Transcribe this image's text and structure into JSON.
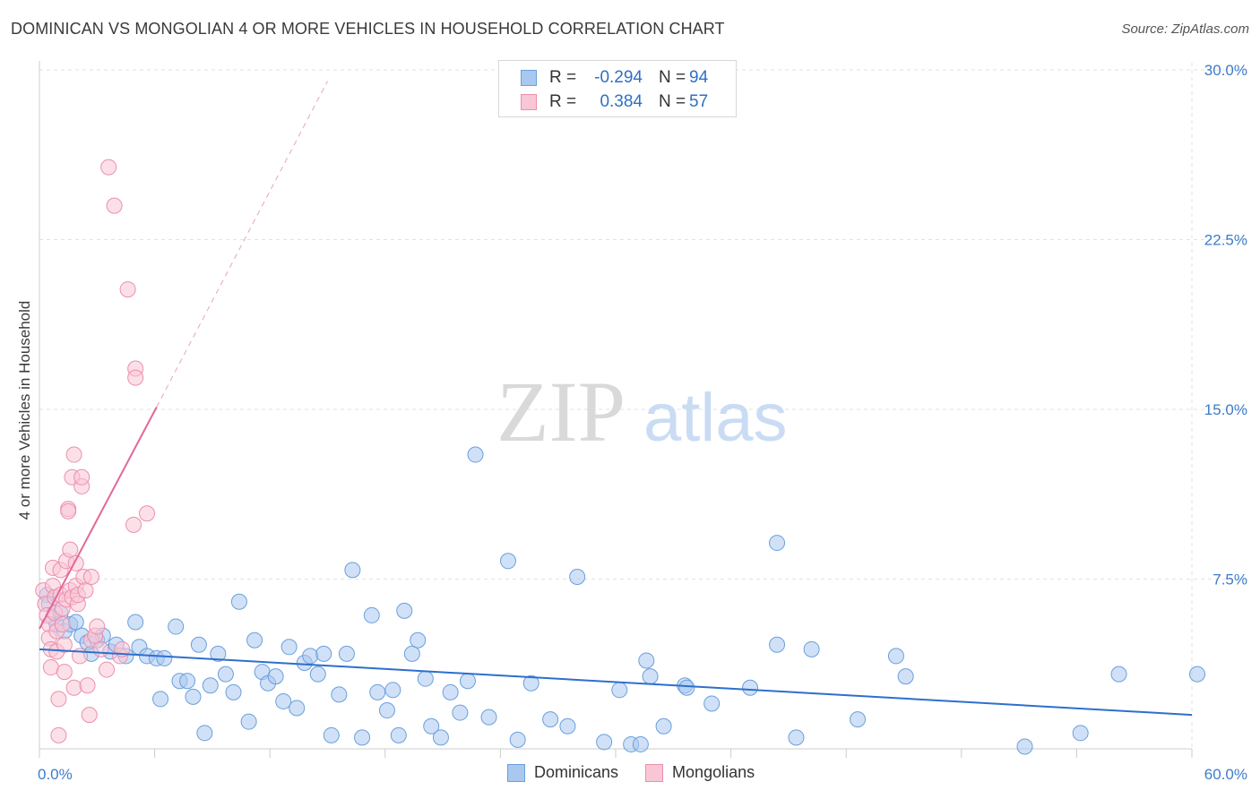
{
  "header": {
    "title": "DOMINICAN VS MONGOLIAN 4 OR MORE VEHICLES IN HOUSEHOLD CORRELATION CHART",
    "source": "Source: ZipAtlas.com"
  },
  "watermark": {
    "zip": "ZIP",
    "atlas": "atlas"
  },
  "legend_top": {
    "rows": [
      {
        "r_label": "R =",
        "r_value": "-0.294",
        "n_label": "N =",
        "n_value": "94",
        "color": "#a9c8f0",
        "border": "#6a9fdc"
      },
      {
        "r_label": "R =",
        "r_value": "0.384",
        "n_label": "N =",
        "n_value": "57",
        "color": "#f9c6d6",
        "border": "#ea8fae"
      }
    ]
  },
  "legend_bottom": {
    "items": [
      {
        "label": "Dominicans",
        "color": "#a9c8f0",
        "border": "#6a9fdc"
      },
      {
        "label": "Mongolians",
        "color": "#f9c6d6",
        "border": "#ea8fae"
      }
    ]
  },
  "chart_data": {
    "type": "scatter",
    "title": "DOMINICAN VS MONGOLIAN 4 OR MORE VEHICLES IN HOUSEHOLD CORRELATION CHART",
    "xlabel": "",
    "ylabel": "4 or more Vehicles in Household",
    "xlim": [
      0,
      60
    ],
    "ylim": [
      0,
      30
    ],
    "x_tick_labels": [
      "0.0%",
      "60.0%"
    ],
    "y_ticks": [
      7.5,
      15.0,
      22.5,
      30.0
    ],
    "y_tick_labels": [
      "7.5%",
      "15.0%",
      "22.5%",
      "30.0%"
    ],
    "grid": true,
    "legend_placement": "top-center",
    "series": [
      {
        "name": "Dominicans",
        "color": "#6a9fdc",
        "fill": "#a9c8f0",
        "trend": {
          "x": [
            0,
            60
          ],
          "y": [
            4.4,
            1.5
          ]
        },
        "points": [
          [
            0.4,
            6.8
          ],
          [
            0.5,
            6.4
          ],
          [
            0.7,
            5.8
          ],
          [
            0.9,
            5.5
          ],
          [
            1.1,
            6.0
          ],
          [
            1.3,
            5.2
          ],
          [
            1.6,
            5.5
          ],
          [
            1.9,
            5.6
          ],
          [
            2.2,
            5.0
          ],
          [
            2.5,
            4.7
          ],
          [
            2.7,
            4.2
          ],
          [
            3.0,
            4.8
          ],
          [
            3.3,
            5.0
          ],
          [
            3.7,
            4.3
          ],
          [
            4.0,
            4.6
          ],
          [
            4.5,
            4.1
          ],
          [
            5.0,
            5.6
          ],
          [
            5.2,
            4.5
          ],
          [
            5.6,
            4.1
          ],
          [
            6.1,
            4.0
          ],
          [
            6.3,
            2.2
          ],
          [
            6.5,
            4.0
          ],
          [
            7.1,
            5.4
          ],
          [
            7.3,
            3.0
          ],
          [
            7.7,
            3.0
          ],
          [
            8.0,
            2.3
          ],
          [
            8.3,
            4.6
          ],
          [
            8.6,
            0.7
          ],
          [
            8.9,
            2.8
          ],
          [
            9.3,
            4.2
          ],
          [
            9.7,
            3.3
          ],
          [
            10.1,
            2.5
          ],
          [
            10.4,
            6.5
          ],
          [
            10.9,
            1.2
          ],
          [
            11.2,
            4.8
          ],
          [
            11.6,
            3.4
          ],
          [
            11.9,
            2.9
          ],
          [
            12.3,
            3.2
          ],
          [
            12.7,
            2.1
          ],
          [
            13.0,
            4.5
          ],
          [
            13.4,
            1.8
          ],
          [
            13.8,
            3.8
          ],
          [
            14.1,
            4.1
          ],
          [
            14.5,
            3.3
          ],
          [
            14.8,
            4.2
          ],
          [
            15.2,
            0.6
          ],
          [
            15.6,
            2.4
          ],
          [
            16.0,
            4.2
          ],
          [
            16.3,
            7.9
          ],
          [
            16.8,
            0.5
          ],
          [
            17.3,
            5.9
          ],
          [
            17.6,
            2.5
          ],
          [
            18.1,
            1.7
          ],
          [
            18.4,
            2.6
          ],
          [
            18.7,
            0.6
          ],
          [
            19.0,
            6.1
          ],
          [
            19.4,
            4.2
          ],
          [
            19.7,
            4.8
          ],
          [
            20.1,
            3.1
          ],
          [
            20.4,
            1.0
          ],
          [
            20.9,
            0.5
          ],
          [
            21.4,
            2.5
          ],
          [
            21.9,
            1.6
          ],
          [
            22.3,
            3.0
          ],
          [
            22.7,
            13.0
          ],
          [
            23.4,
            1.4
          ],
          [
            24.4,
            8.3
          ],
          [
            24.9,
            0.4
          ],
          [
            25.6,
            2.9
          ],
          [
            26.6,
            1.3
          ],
          [
            27.5,
            1.0
          ],
          [
            28.0,
            7.6
          ],
          [
            29.4,
            0.3
          ],
          [
            30.2,
            2.6
          ],
          [
            30.8,
            0.2
          ],
          [
            31.3,
            0.2
          ],
          [
            31.6,
            3.9
          ],
          [
            31.8,
            3.2
          ],
          [
            32.5,
            1.0
          ],
          [
            33.6,
            2.8
          ],
          [
            33.7,
            2.7
          ],
          [
            35.0,
            2.0
          ],
          [
            37.0,
            2.7
          ],
          [
            38.4,
            9.1
          ],
          [
            38.4,
            4.6
          ],
          [
            39.4,
            0.5
          ],
          [
            40.2,
            4.4
          ],
          [
            42.6,
            1.3
          ],
          [
            44.6,
            4.1
          ],
          [
            45.1,
            3.2
          ],
          [
            51.3,
            0.1
          ],
          [
            54.2,
            0.7
          ],
          [
            56.2,
            3.3
          ],
          [
            61.0,
            3.3
          ]
        ]
      },
      {
        "name": "Mongolians",
        "color": "#ea8fae",
        "fill": "#f9c6d6",
        "trend": {
          "x": [
            0,
            6.1
          ],
          "y": [
            5.3,
            15.1
          ]
        },
        "trend_extension": {
          "x": [
            6.1,
            15.0
          ],
          "y": [
            15.1,
            29.5
          ]
        },
        "points": [
          [
            0.2,
            7.0
          ],
          [
            0.3,
            6.4
          ],
          [
            0.4,
            5.9
          ],
          [
            0.5,
            5.5
          ],
          [
            0.5,
            4.9
          ],
          [
            0.6,
            4.4
          ],
          [
            0.6,
            3.6
          ],
          [
            0.7,
            8.0
          ],
          [
            0.7,
            7.2
          ],
          [
            0.8,
            6.7
          ],
          [
            0.8,
            6.0
          ],
          [
            0.9,
            5.2
          ],
          [
            0.9,
            4.3
          ],
          [
            1.0,
            2.2
          ],
          [
            1.0,
            0.6
          ],
          [
            1.1,
            7.9
          ],
          [
            1.1,
            6.8
          ],
          [
            1.2,
            6.2
          ],
          [
            1.2,
            5.5
          ],
          [
            1.3,
            4.6
          ],
          [
            1.3,
            3.4
          ],
          [
            1.4,
            8.3
          ],
          [
            1.4,
            6.6
          ],
          [
            1.5,
            10.6
          ],
          [
            1.5,
            10.5
          ],
          [
            1.6,
            8.8
          ],
          [
            1.6,
            7.0
          ],
          [
            1.7,
            6.7
          ],
          [
            1.7,
            12.0
          ],
          [
            1.8,
            13.0
          ],
          [
            1.8,
            2.7
          ],
          [
            1.9,
            8.2
          ],
          [
            1.9,
            7.2
          ],
          [
            2.0,
            6.4
          ],
          [
            2.0,
            6.8
          ],
          [
            2.1,
            4.1
          ],
          [
            2.2,
            11.6
          ],
          [
            2.2,
            12.0
          ],
          [
            2.3,
            7.6
          ],
          [
            2.4,
            7.0
          ],
          [
            2.5,
            2.8
          ],
          [
            2.6,
            1.5
          ],
          [
            2.7,
            4.8
          ],
          [
            2.7,
            7.6
          ],
          [
            2.9,
            5.0
          ],
          [
            3.0,
            5.4
          ],
          [
            3.2,
            4.4
          ],
          [
            3.5,
            3.5
          ],
          [
            3.6,
            25.7
          ],
          [
            3.9,
            24.0
          ],
          [
            4.2,
            4.1
          ],
          [
            4.3,
            4.4
          ],
          [
            4.6,
            20.3
          ],
          [
            4.9,
            9.9
          ],
          [
            5.0,
            16.8
          ],
          [
            5.0,
            16.4
          ],
          [
            5.6,
            10.4
          ]
        ]
      }
    ]
  }
}
